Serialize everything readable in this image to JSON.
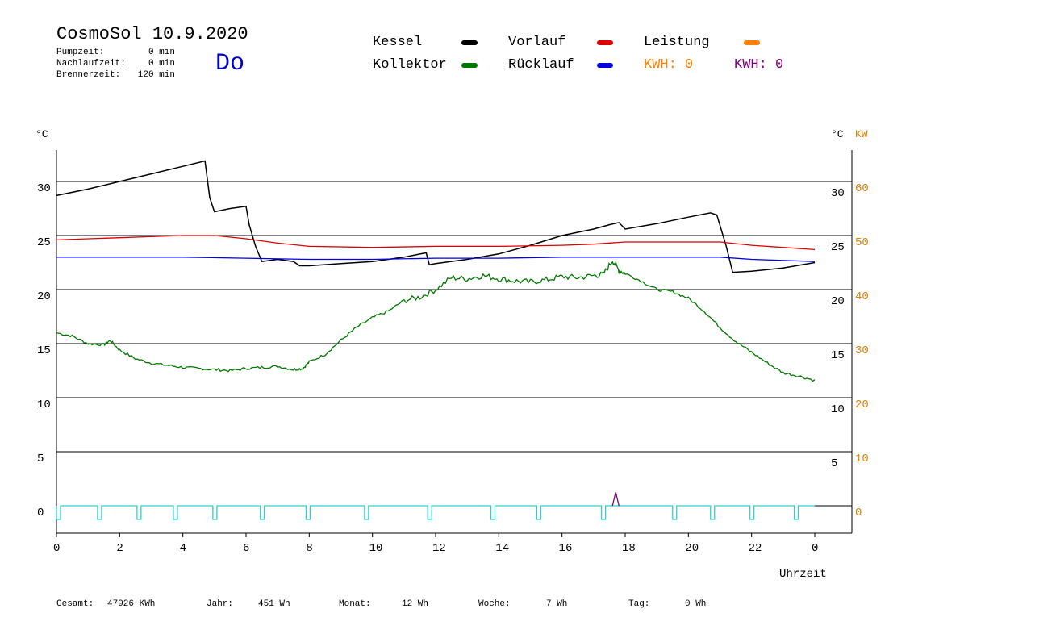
{
  "header": {
    "title": "CosmoSol 10.9.2020",
    "pumpzeit_label": "Pumpzeit:",
    "pumpzeit_value": "0 min",
    "nachlaufzeit_label": "Nachlaufzeit:",
    "nachlaufzeit_value": "0 min",
    "brennerzeit_label": "Brennerzeit:",
    "brennerzeit_value": "120 min",
    "day": "Do"
  },
  "legend": {
    "kessel": "Kessel",
    "vorlauf": "Vorlauf",
    "leistung": "Leistung",
    "kollektor": "Kollektor",
    "ruecklauf": "Rücklauf",
    "kwh1": "KWH: 0",
    "kwh2": "KWH: 0"
  },
  "footer": {
    "gesamt_label": "Gesamt:",
    "gesamt_value": "47926 KWh",
    "jahr_label": "Jahr:",
    "jahr_value": "451 Wh",
    "monat_label": "Monat:",
    "monat_value": "12 Wh",
    "woche_label": "Woche:",
    "woche_value": "7 Wh",
    "tag_label": "Tag:",
    "tag_value": "0 Wh"
  },
  "colors": {
    "kessel": "#000000",
    "vorlauf": "#dd0000",
    "leistung": "#ff8000",
    "kollektor": "#007700",
    "ruecklauf": "#0000dd",
    "kwh1": "#ff8000",
    "kwh2": "#800080",
    "pump": "#30d0d0",
    "kw_axis": "#e08000"
  },
  "chart_data": {
    "type": "line",
    "xlabel": "Uhrzeit",
    "ylabel_left": "°C",
    "ylabel_right_temp": "°C",
    "ylabel_right_power": "KW",
    "x_ticks": [
      "0",
      "2",
      "4",
      "6",
      "8",
      "10",
      "12",
      "14",
      "16",
      "18",
      "20",
      "22",
      "0"
    ],
    "xlim": [
      0,
      24
    ],
    "ylim": [
      -2.5,
      33
    ],
    "y_ticks_left": [
      0,
      5,
      10,
      15,
      20,
      25,
      30
    ],
    "y_ticks_right_temp": [
      5,
      10,
      15,
      20,
      25,
      30
    ],
    "y_ticks_right_power": [
      0,
      10,
      20,
      30,
      40,
      50,
      60
    ],
    "grid": "horizontal",
    "series": [
      {
        "name": "Kessel",
        "x": [
          0,
          1,
          2,
          3,
          4,
          4.7,
          4.85,
          5.0,
          5.5,
          6.0,
          6.1,
          6.3,
          6.5,
          7.0,
          7.5,
          7.7,
          8.0,
          9.0,
          10.0,
          11.0,
          11.7,
          11.8,
          12.0,
          13.0,
          14.0,
          15.0,
          16.0,
          17.0,
          17.5,
          17.8,
          18.0,
          19.0,
          20.0,
          20.7,
          20.9,
          21.2,
          21.4,
          22.0,
          23.0,
          24.0
        ],
        "values": [
          28.7,
          29.3,
          30.0,
          30.7,
          31.4,
          31.9,
          28.5,
          27.2,
          27.5,
          27.7,
          26.0,
          24.0,
          22.6,
          22.8,
          22.6,
          22.2,
          22.2,
          22.4,
          22.6,
          23.0,
          23.4,
          22.3,
          22.4,
          22.8,
          23.3,
          24.1,
          25.0,
          25.6,
          26.0,
          26.2,
          25.6,
          26.1,
          26.7,
          27.1,
          26.9,
          24.0,
          21.6,
          21.7,
          22.0,
          22.5
        ]
      },
      {
        "name": "Vorlauf",
        "x": [
          0,
          2,
          4,
          5,
          6,
          7,
          8,
          10,
          12,
          14,
          16,
          17,
          18,
          20,
          21,
          22,
          23,
          24
        ],
        "values": [
          24.6,
          24.8,
          25.0,
          25.0,
          24.7,
          24.3,
          24.0,
          23.9,
          24.0,
          24.0,
          24.1,
          24.2,
          24.4,
          24.4,
          24.4,
          24.1,
          23.9,
          23.7
        ]
      },
      {
        "name": "Rücklauf",
        "x": [
          0,
          4,
          6,
          8,
          10,
          12,
          14,
          16,
          18,
          20,
          21,
          22,
          24
        ],
        "values": [
          23.0,
          23.0,
          22.9,
          22.8,
          22.8,
          22.9,
          22.9,
          23.0,
          23.0,
          23.0,
          23.0,
          22.8,
          22.6
        ]
      },
      {
        "name": "Kollektor",
        "x": [
          0,
          0.5,
          1,
          1.5,
          1.7,
          2,
          2.5,
          3,
          3.5,
          4,
          4.5,
          5,
          5.5,
          6,
          6.5,
          7,
          7.5,
          7.8,
          8,
          8.5,
          9,
          9.5,
          10,
          10.5,
          11,
          11.5,
          12,
          12.5,
          13,
          13.5,
          14,
          14.5,
          15,
          15.5,
          16,
          16.5,
          17,
          17.3,
          17.6,
          17.8,
          18,
          18.5,
          19,
          19.5,
          20,
          20.5,
          21,
          21.5,
          22,
          22.5,
          23,
          23.5,
          24
        ],
        "values": [
          16.0,
          15.7,
          15.0,
          14.9,
          15.3,
          14.4,
          13.6,
          13.2,
          13.0,
          12.8,
          12.7,
          12.6,
          12.5,
          12.7,
          12.8,
          12.9,
          12.6,
          12.7,
          13.3,
          14.0,
          15.3,
          16.5,
          17.4,
          18.0,
          19.0,
          19.3,
          20.0,
          21.1,
          21.0,
          21.3,
          21.0,
          20.8,
          20.7,
          20.9,
          21.2,
          21.1,
          21.3,
          21.4,
          22.7,
          21.8,
          21.5,
          20.8,
          20.0,
          19.8,
          19.2,
          18.0,
          16.5,
          15.2,
          14.2,
          13.2,
          12.3,
          12.0,
          11.6
        ]
      }
    ],
    "pump_pulses_hours": [
      0.0,
      1.3,
      2.55,
      3.7,
      4.95,
      6.45,
      7.9,
      9.75,
      11.75,
      13.75,
      15.2,
      17.25,
      19.5,
      20.7,
      21.95,
      23.35
    ],
    "leistung_spike_hour": 17.7
  }
}
